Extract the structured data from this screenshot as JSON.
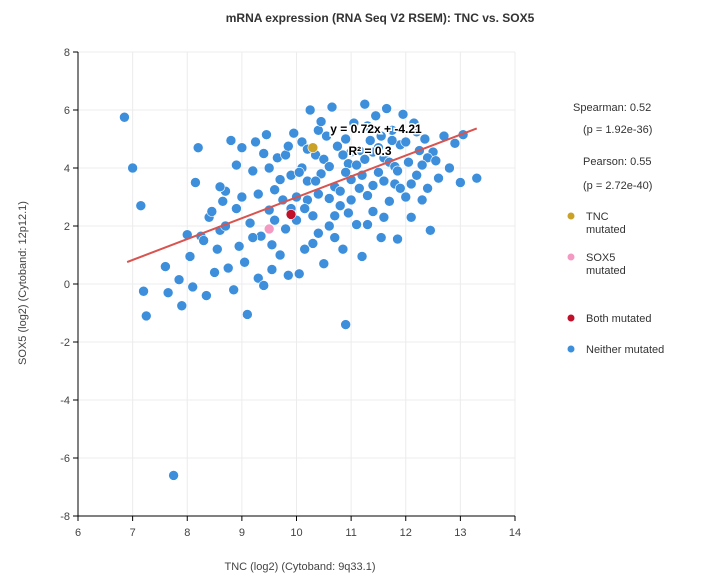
{
  "chart_data": {
    "type": "scatter",
    "title": "mRNA expression (RNA Seq V2 RSEM): TNC vs. SOX5",
    "xlabel": "TNC (log2) (Cytoband: 9q33.1)",
    "ylabel": "SOX5 (log2) (Cytoband: 12p12.1)",
    "xlim": [
      6,
      14
    ],
    "ylim": [
      -8,
      8
    ],
    "xticks": [
      6,
      7,
      8,
      9,
      10,
      11,
      12,
      13,
      14
    ],
    "yticks": [
      -8,
      -6,
      -4,
      -2,
      0,
      2,
      4,
      6,
      8
    ],
    "grid": true,
    "legend_position": "right",
    "stats": {
      "spearman": "Spearman: 0.52",
      "spearman_p": "(p = 1.92e-36)",
      "pearson": "Pearson: 0.55",
      "pearson_p": "(p = 2.72e-40)"
    },
    "regression": {
      "slope": 0.72,
      "intercept": -4.21,
      "x_range": [
        6.9,
        13.3
      ],
      "equation": "y = 0.72x + -4.21",
      "r_squared": "R² = 0.3",
      "color": "#d9534f"
    },
    "legend": [
      {
        "lines": [
          "TNC",
          "mutated"
        ],
        "color": "#c9a227",
        "name": "tnc-mutated"
      },
      {
        "lines": [
          "SOX5",
          "mutated"
        ],
        "color": "#f49ac2",
        "name": "sox5-mutated"
      },
      {
        "lines": [
          "Both mutated"
        ],
        "color": "#c0102a",
        "name": "both-mutated"
      },
      {
        "lines": [
          "Neither mutated"
        ],
        "color": "#3d8fdc",
        "name": "neither-mutated"
      }
    ],
    "series": [
      {
        "name": "Neither mutated",
        "color": "#3d8fdc",
        "points": [
          [
            6.85,
            5.75
          ],
          [
            7.0,
            4.0
          ],
          [
            7.15,
            2.7
          ],
          [
            7.2,
            -0.25
          ],
          [
            7.25,
            -1.1
          ],
          [
            7.6,
            0.6
          ],
          [
            7.65,
            -0.3
          ],
          [
            7.75,
            -6.6
          ],
          [
            7.85,
            0.15
          ],
          [
            7.9,
            -0.75
          ],
          [
            8.0,
            1.7
          ],
          [
            8.05,
            0.95
          ],
          [
            8.1,
            -0.1
          ],
          [
            8.15,
            3.5
          ],
          [
            8.2,
            4.7
          ],
          [
            8.25,
            1.65
          ],
          [
            8.3,
            1.5
          ],
          [
            8.35,
            -0.4
          ],
          [
            8.4,
            2.3
          ],
          [
            8.45,
            2.5
          ],
          [
            8.5,
            0.4
          ],
          [
            8.55,
            1.2
          ],
          [
            8.6,
            1.85
          ],
          [
            8.65,
            2.85
          ],
          [
            8.7,
            3.2
          ],
          [
            8.75,
            0.55
          ],
          [
            8.8,
            4.95
          ],
          [
            8.85,
            -0.2
          ],
          [
            8.9,
            4.1
          ],
          [
            8.95,
            1.3
          ],
          [
            9.0,
            4.7
          ],
          [
            9.05,
            0.75
          ],
          [
            9.1,
            -1.05
          ],
          [
            9.15,
            2.1
          ],
          [
            9.2,
            3.9
          ],
          [
            9.25,
            4.9
          ],
          [
            9.3,
            0.2
          ],
          [
            9.35,
            1.65
          ],
          [
            9.4,
            -0.05
          ],
          [
            9.45,
            5.15
          ],
          [
            9.5,
            2.55
          ],
          [
            9.55,
            0.5
          ],
          [
            9.6,
            3.25
          ],
          [
            9.65,
            4.35
          ],
          [
            9.7,
            1.0
          ],
          [
            9.75,
            2.9
          ],
          [
            9.8,
            4.45
          ],
          [
            9.85,
            0.3
          ],
          [
            9.9,
            2.6
          ],
          [
            9.95,
            5.2
          ],
          [
            10.0,
            3.0
          ],
          [
            10.05,
            0.35
          ],
          [
            10.1,
            4.0
          ],
          [
            10.15,
            1.2
          ],
          [
            10.2,
            3.55
          ],
          [
            10.25,
            6.0
          ],
          [
            10.3,
            2.35
          ],
          [
            10.35,
            4.45
          ],
          [
            10.4,
            1.75
          ],
          [
            10.45,
            3.8
          ],
          [
            10.5,
            0.7
          ],
          [
            10.55,
            5.1
          ],
          [
            10.6,
            2.0
          ],
          [
            10.65,
            6.1
          ],
          [
            10.7,
            3.35
          ],
          [
            10.75,
            4.75
          ],
          [
            10.8,
            2.7
          ],
          [
            10.85,
            1.2
          ],
          [
            10.9,
            -1.4
          ],
          [
            10.95,
            4.15
          ],
          [
            11.0,
            3.6
          ],
          [
            11.05,
            5.55
          ],
          [
            11.1,
            2.05
          ],
          [
            11.15,
            4.6
          ],
          [
            11.2,
            0.95
          ],
          [
            11.25,
            6.2
          ],
          [
            11.3,
            3.05
          ],
          [
            11.35,
            4.95
          ],
          [
            11.4,
            2.5
          ],
          [
            11.45,
            5.8
          ],
          [
            11.5,
            3.85
          ],
          [
            11.55,
            1.6
          ],
          [
            11.6,
            4.35
          ],
          [
            11.65,
            6.05
          ],
          [
            11.7,
            2.85
          ],
          [
            11.75,
            5.3
          ],
          [
            11.8,
            3.45
          ],
          [
            11.85,
            1.55
          ],
          [
            11.9,
            4.8
          ],
          [
            11.95,
            5.85
          ],
          [
            12.0,
            3.0
          ],
          [
            12.05,
            4.2
          ],
          [
            12.1,
            2.3
          ],
          [
            12.15,
            5.55
          ],
          [
            12.2,
            3.75
          ],
          [
            12.25,
            4.6
          ],
          [
            12.3,
            2.9
          ],
          [
            12.35,
            5.0
          ],
          [
            12.4,
            3.3
          ],
          [
            12.45,
            1.85
          ],
          [
            12.5,
            4.55
          ],
          [
            12.6,
            3.65
          ],
          [
            12.7,
            5.1
          ],
          [
            12.8,
            4.0
          ],
          [
            12.9,
            4.85
          ],
          [
            13.0,
            3.5
          ],
          [
            13.05,
            5.15
          ],
          [
            13.3,
            3.65
          ],
          [
            9.3,
            3.1
          ],
          [
            9.6,
            2.2
          ],
          [
            9.9,
            3.75
          ],
          [
            10.2,
            2.9
          ],
          [
            10.5,
            4.3
          ],
          [
            10.8,
            3.2
          ],
          [
            11.1,
            4.1
          ],
          [
            11.4,
            3.4
          ],
          [
            11.7,
            4.2
          ],
          [
            12.0,
            4.9
          ],
          [
            10.4,
            5.3
          ],
          [
            10.9,
            5.0
          ],
          [
            11.3,
            5.45
          ],
          [
            9.5,
            4.0
          ],
          [
            8.9,
            2.6
          ],
          [
            10.1,
            4.9
          ],
          [
            11.6,
            2.3
          ],
          [
            12.2,
            5.25
          ],
          [
            10.3,
            1.4
          ],
          [
            10.7,
            2.35
          ],
          [
            11.0,
            2.9
          ],
          [
            11.2,
            3.75
          ],
          [
            10.6,
            4.05
          ],
          [
            9.8,
            1.9
          ],
          [
            9.2,
            1.6
          ],
          [
            8.7,
            2.0
          ],
          [
            11.8,
            4.05
          ],
          [
            12.4,
            4.35
          ],
          [
            10.0,
            2.2
          ],
          [
            10.4,
            3.1
          ],
          [
            10.9,
            3.85
          ],
          [
            11.5,
            4.7
          ],
          [
            11.9,
            3.3
          ],
          [
            9.4,
            4.5
          ],
          [
            10.7,
            1.6
          ],
          [
            11.3,
            2.05
          ],
          [
            10.2,
            4.65
          ],
          [
            11.0,
            4.55
          ],
          [
            11.6,
            3.55
          ],
          [
            12.1,
            3.45
          ],
          [
            9.7,
            3.6
          ],
          [
            10.6,
            2.95
          ],
          [
            11.4,
            4.55
          ],
          [
            10.45,
            5.6
          ],
          [
            11.75,
            4.95
          ],
          [
            9.55,
            1.35
          ],
          [
            10.85,
            4.45
          ],
          [
            11.15,
            3.3
          ],
          [
            8.6,
            3.35
          ],
          [
            9.0,
            3.0
          ],
          [
            10.15,
            2.6
          ],
          [
            10.95,
            2.45
          ],
          [
            11.55,
            5.1
          ],
          [
            12.3,
            4.1
          ],
          [
            9.85,
            4.75
          ],
          [
            10.35,
            3.55
          ],
          [
            11.25,
            4.3
          ],
          [
            11.85,
            3.9
          ],
          [
            12.55,
            4.25
          ],
          [
            10.05,
            3.85
          ]
        ]
      },
      {
        "name": "TNC mutated",
        "color": "#c9a227",
        "points": [
          [
            10.3,
            4.7
          ]
        ]
      },
      {
        "name": "SOX5 mutated",
        "color": "#f49ac2",
        "points": [
          [
            9.5,
            1.9
          ]
        ]
      },
      {
        "name": "Both mutated",
        "color": "#c0102a",
        "points": [
          [
            9.9,
            2.4
          ]
        ]
      }
    ]
  }
}
